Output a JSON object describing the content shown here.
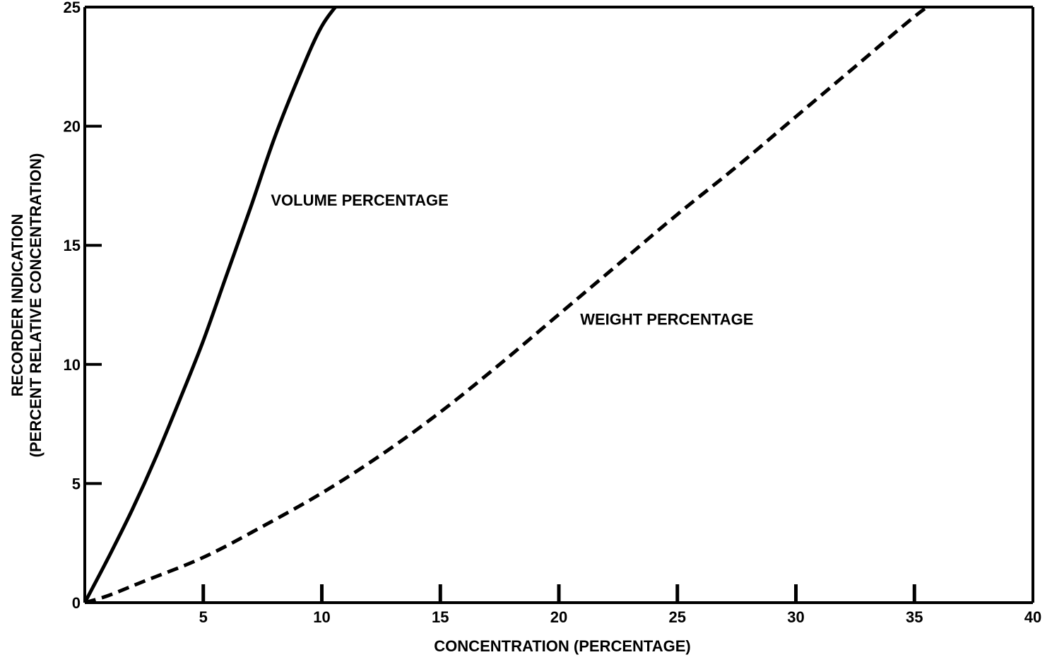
{
  "chart_data": {
    "type": "line",
    "title": "",
    "xlabel": "CONCENTRATION (PERCENTAGE)",
    "ylabel_line1": "RECORDER INDICATION",
    "ylabel_line2": "(PERCENT RELATIVE CONCENTRATION)",
    "xlim": [
      0,
      40
    ],
    "ylim": [
      0,
      25
    ],
    "x_ticks": [
      5,
      10,
      15,
      20,
      25,
      30,
      35,
      40
    ],
    "y_ticks": [
      0,
      5,
      10,
      15,
      20,
      25
    ],
    "grid": false,
    "legend": "none",
    "series": [
      {
        "name": "VOLUME PERCENTAGE",
        "style": "solid",
        "color": "#000000",
        "x": [
          0,
          1,
          2,
          3,
          4,
          5,
          6,
          7,
          8,
          9,
          10,
          11
        ],
        "y": [
          0,
          1.9,
          3.9,
          6.1,
          8.5,
          11.0,
          13.8,
          16.6,
          19.5,
          22.0,
          24.2,
          25.5
        ]
      },
      {
        "name": "WEIGHT PERCENTAGE",
        "style": "dashed",
        "color": "#000000",
        "x": [
          0,
          1,
          2.5,
          5,
          7.5,
          10,
          12.5,
          15,
          17.5,
          20,
          22.5,
          25,
          27.5,
          30,
          32.5,
          35,
          36
        ],
        "y": [
          0,
          0.3,
          0.9,
          1.9,
          3.2,
          4.6,
          6.2,
          8.0,
          10.0,
          12.1,
          14.2,
          16.3,
          18.3,
          20.4,
          22.5,
          24.6,
          25.3
        ]
      }
    ]
  }
}
